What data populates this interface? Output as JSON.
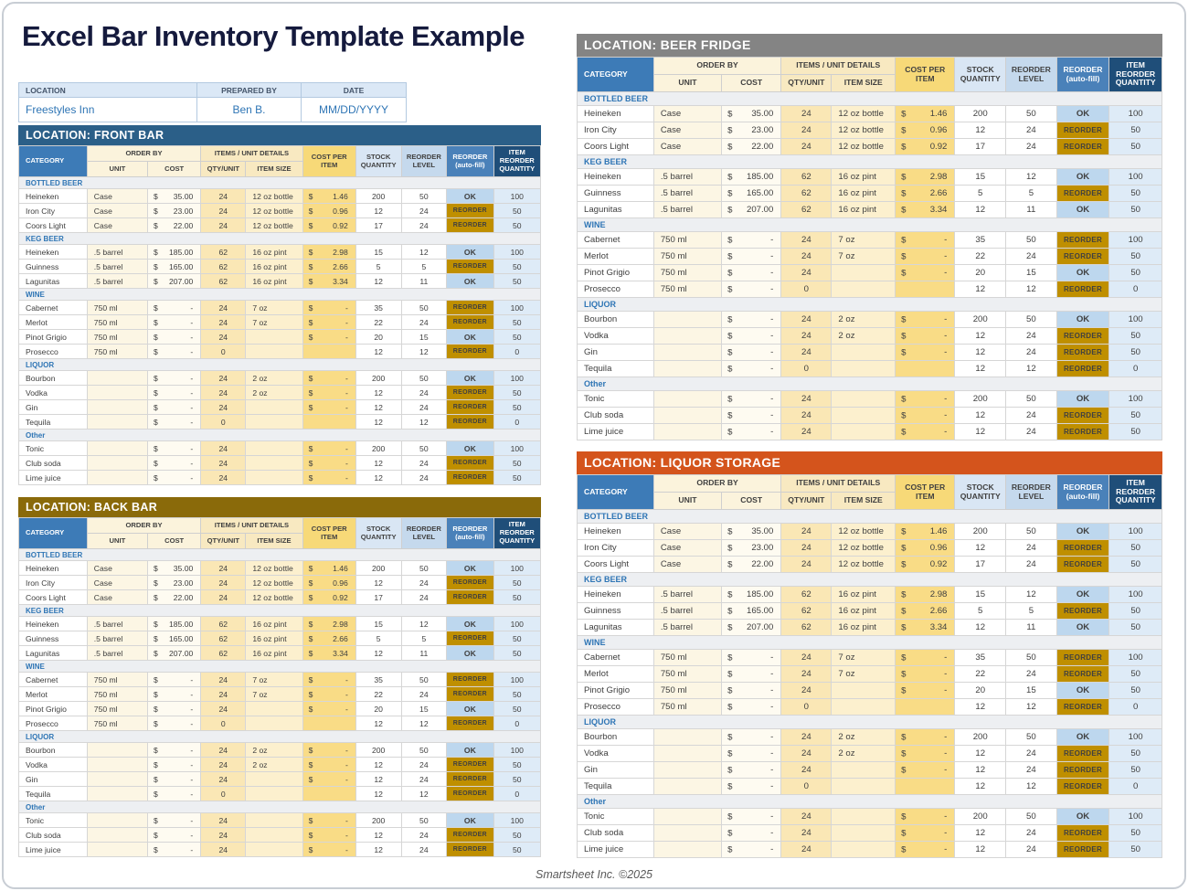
{
  "page_title": "Excel Bar Inventory Template Example",
  "footer_text": "Smartsheet Inc. ©2025",
  "info_bar": {
    "columns": [
      {
        "label": "LOCATION",
        "value": "Freestyles Inn"
      },
      {
        "label": "PREPARED BY",
        "value": "Ben B."
      },
      {
        "label": "DATE",
        "value": "MM/DD/YYYY"
      }
    ]
  },
  "column_headers": {
    "category": "CATEGORY",
    "order_by": "ORDER BY",
    "unit": "UNIT",
    "cost": "COST",
    "items_unit_details": "ITEMS / UNIT DETAILS",
    "qty_unit": "QTY/UNIT",
    "item_size": "ITEM SIZE",
    "cost_per_item": "COST PER ITEM",
    "stock_quantity": "STOCK QUANTITY",
    "reorder_level": "REORDER LEVEL",
    "reorder_autofill": "REORDER (auto-fill)",
    "item_reorder_quantity": "ITEM REORDER QUANTITY"
  },
  "status_colors": {
    "ok_bg": "#BDD7EE",
    "ok_text": "#17375E",
    "reorder_bg": "#BF8F00",
    "reorder_text": "#FFFFFF"
  },
  "tables": [
    {
      "id": "front-bar",
      "title": "LOCATION: FRONT BAR",
      "header_color": "#2B5F88"
    },
    {
      "id": "back-bar",
      "title": "LOCATION: BACK BAR",
      "header_color": "#8A6A0A"
    },
    {
      "id": "beer-fridge",
      "title": "LOCATION: BEER FRIDGE",
      "header_color": "#848484"
    },
    {
      "id": "liquor-storage",
      "title": "LOCATION: LIQUOR STORAGE",
      "header_color": "#D4541C"
    }
  ],
  "inventory_sections": [
    {
      "name": "BOTTLED BEER",
      "rows": [
        {
          "item": "Heineken",
          "unit": "Case",
          "cost_sign": "$",
          "cost": "35.00",
          "qty_unit": "24",
          "item_size": "12 oz bottle",
          "cpi_sign": "$",
          "cpi": "1.46",
          "stock": "200",
          "level": "50",
          "status": "OK",
          "reorder_qty": "100"
        },
        {
          "item": "Iron City",
          "unit": "Case",
          "cost_sign": "$",
          "cost": "23.00",
          "qty_unit": "24",
          "item_size": "12 oz bottle",
          "cpi_sign": "$",
          "cpi": "0.96",
          "stock": "12",
          "level": "24",
          "status": "REORDER",
          "reorder_qty": "50"
        },
        {
          "item": "Coors Light",
          "unit": "Case",
          "cost_sign": "$",
          "cost": "22.00",
          "qty_unit": "24",
          "item_size": "12 oz bottle",
          "cpi_sign": "$",
          "cpi": "0.92",
          "stock": "17",
          "level": "24",
          "status": "REORDER",
          "reorder_qty": "50"
        }
      ]
    },
    {
      "name": "KEG BEER",
      "rows": [
        {
          "item": "Heineken",
          "unit": ".5 barrel",
          "cost_sign": "$",
          "cost": "185.00",
          "qty_unit": "62",
          "item_size": "16 oz pint",
          "cpi_sign": "$",
          "cpi": "2.98",
          "stock": "15",
          "level": "12",
          "status": "OK",
          "reorder_qty": "100"
        },
        {
          "item": "Guinness",
          "unit": ".5 barrel",
          "cost_sign": "$",
          "cost": "165.00",
          "qty_unit": "62",
          "item_size": "16 oz pint",
          "cpi_sign": "$",
          "cpi": "2.66",
          "stock": "5",
          "level": "5",
          "status": "REORDER",
          "reorder_qty": "50"
        },
        {
          "item": "Lagunitas",
          "unit": ".5 barrel",
          "cost_sign": "$",
          "cost": "207.00",
          "qty_unit": "62",
          "item_size": "16 oz pint",
          "cpi_sign": "$",
          "cpi": "3.34",
          "stock": "12",
          "level": "11",
          "status": "OK",
          "reorder_qty": "50"
        }
      ]
    },
    {
      "name": "WINE",
      "rows": [
        {
          "item": "Cabernet",
          "unit": "750 ml",
          "cost_sign": "$",
          "cost": "-",
          "qty_unit": "24",
          "item_size": "7 oz",
          "cpi_sign": "$",
          "cpi": "-",
          "stock": "35",
          "level": "50",
          "status": "REORDER",
          "reorder_qty": "100"
        },
        {
          "item": "Merlot",
          "unit": "750 ml",
          "cost_sign": "$",
          "cost": "-",
          "qty_unit": "24",
          "item_size": "7 oz",
          "cpi_sign": "$",
          "cpi": "-",
          "stock": "22",
          "level": "24",
          "status": "REORDER",
          "reorder_qty": "50"
        },
        {
          "item": "Pinot Grigio",
          "unit": "750 ml",
          "cost_sign": "$",
          "cost": "-",
          "qty_unit": "24",
          "item_size": "",
          "cpi_sign": "$",
          "cpi": "-",
          "stock": "20",
          "level": "15",
          "status": "OK",
          "reorder_qty": "50"
        },
        {
          "item": "Prosecco",
          "unit": "750 ml",
          "cost_sign": "$",
          "cost": "-",
          "qty_unit": "0",
          "item_size": "",
          "cpi_sign": "",
          "cpi": "",
          "stock": "12",
          "level": "12",
          "status": "REORDER",
          "reorder_qty": "0"
        }
      ]
    },
    {
      "name": "LIQUOR",
      "rows": [
        {
          "item": "Bourbon",
          "unit": "",
          "cost_sign": "$",
          "cost": "-",
          "qty_unit": "24",
          "item_size": "2 oz",
          "cpi_sign": "$",
          "cpi": "-",
          "stock": "200",
          "level": "50",
          "status": "OK",
          "reorder_qty": "100"
        },
        {
          "item": "Vodka",
          "unit": "",
          "cost_sign": "$",
          "cost": "-",
          "qty_unit": "24",
          "item_size": "2 oz",
          "cpi_sign": "$",
          "cpi": "-",
          "stock": "12",
          "level": "24",
          "status": "REORDER",
          "reorder_qty": "50"
        },
        {
          "item": "Gin",
          "unit": "",
          "cost_sign": "$",
          "cost": "-",
          "qty_unit": "24",
          "item_size": "",
          "cpi_sign": "$",
          "cpi": "-",
          "stock": "12",
          "level": "24",
          "status": "REORDER",
          "reorder_qty": "50"
        },
        {
          "item": "Tequila",
          "unit": "",
          "cost_sign": "$",
          "cost": "-",
          "qty_unit": "0",
          "item_size": "",
          "cpi_sign": "",
          "cpi": "",
          "stock": "12",
          "level": "12",
          "status": "REORDER",
          "reorder_qty": "0"
        }
      ]
    },
    {
      "name": "Other",
      "rows": [
        {
          "item": "Tonic",
          "unit": "",
          "cost_sign": "$",
          "cost": "-",
          "qty_unit": "24",
          "item_size": "",
          "cpi_sign": "$",
          "cpi": "-",
          "stock": "200",
          "level": "50",
          "status": "OK",
          "reorder_qty": "100"
        },
        {
          "item": "Club soda",
          "unit": "",
          "cost_sign": "$",
          "cost": "-",
          "qty_unit": "24",
          "item_size": "",
          "cpi_sign": "$",
          "cpi": "-",
          "stock": "12",
          "level": "24",
          "status": "REORDER",
          "reorder_qty": "50"
        },
        {
          "item": "Lime juice",
          "unit": "",
          "cost_sign": "$",
          "cost": "-",
          "qty_unit": "24",
          "item_size": "",
          "cpi_sign": "$",
          "cpi": "-",
          "stock": "12",
          "level": "24",
          "status": "REORDER",
          "reorder_qty": "50"
        }
      ]
    }
  ]
}
